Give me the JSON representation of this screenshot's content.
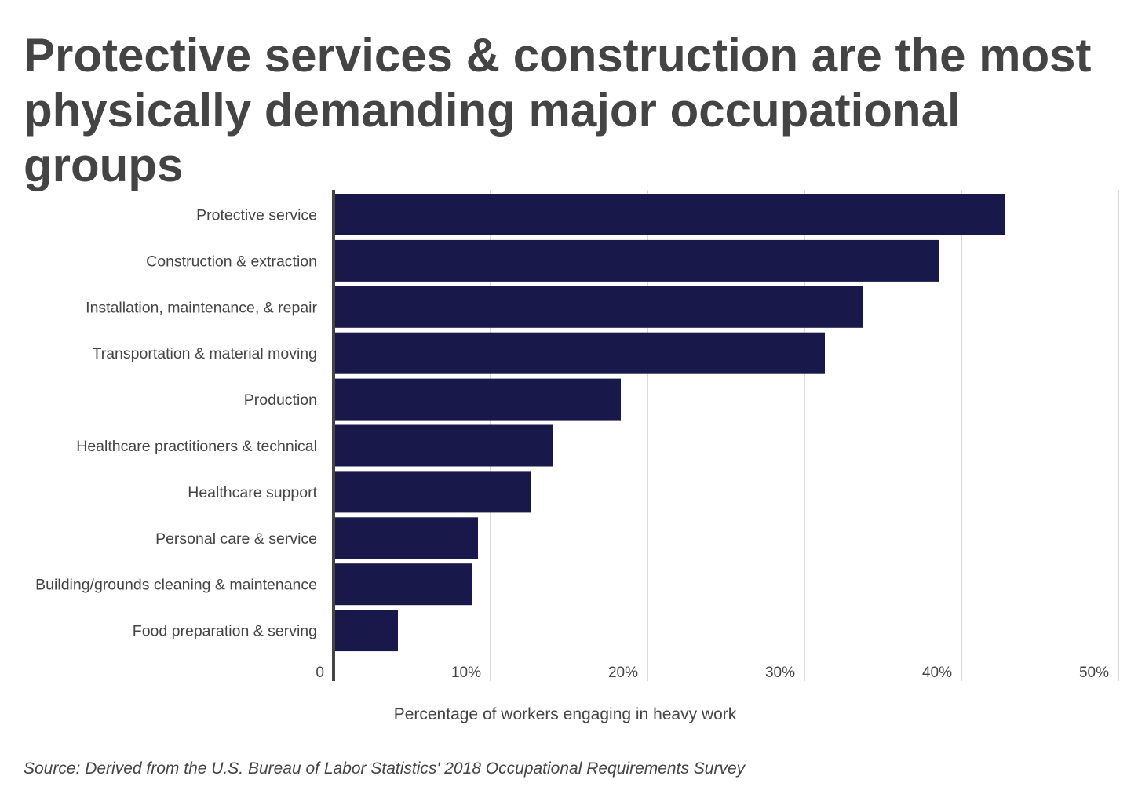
{
  "title": "Protective services & construction are the most physically demanding major occupational groups",
  "source": "Source: Derived from the U.S. Bureau of Labor Statistics' 2018 Occupational Requirements Survey",
  "colors": {
    "bar": "#18184a",
    "grid": "#d9d9d9",
    "axis": "#444444",
    "text": "#444444"
  },
  "chart_data": {
    "type": "bar",
    "orientation": "horizontal",
    "xlabel": "Percentage of workers engaging in heavy work",
    "ylabel": "",
    "xlim": [
      0,
      50
    ],
    "xticks": [
      0,
      10,
      20,
      30,
      40,
      50
    ],
    "xtick_labels": [
      "0",
      "10%",
      "20%",
      "30%",
      "40%",
      "50%"
    ],
    "grid": true,
    "legend": "none",
    "categories": [
      "Protective service",
      "Construction & extraction",
      "Installation, maintenance, & repair",
      "Transportation & material moving",
      "Production",
      "Healthcare practitioners & technical",
      "Healthcare support",
      "Personal care & service",
      "Building/grounds cleaning & maintenance",
      "Food preparation & serving"
    ],
    "values": [
      42.8,
      38.6,
      33.7,
      31.3,
      18.3,
      14.0,
      12.6,
      9.2,
      8.8,
      4.1
    ]
  }
}
